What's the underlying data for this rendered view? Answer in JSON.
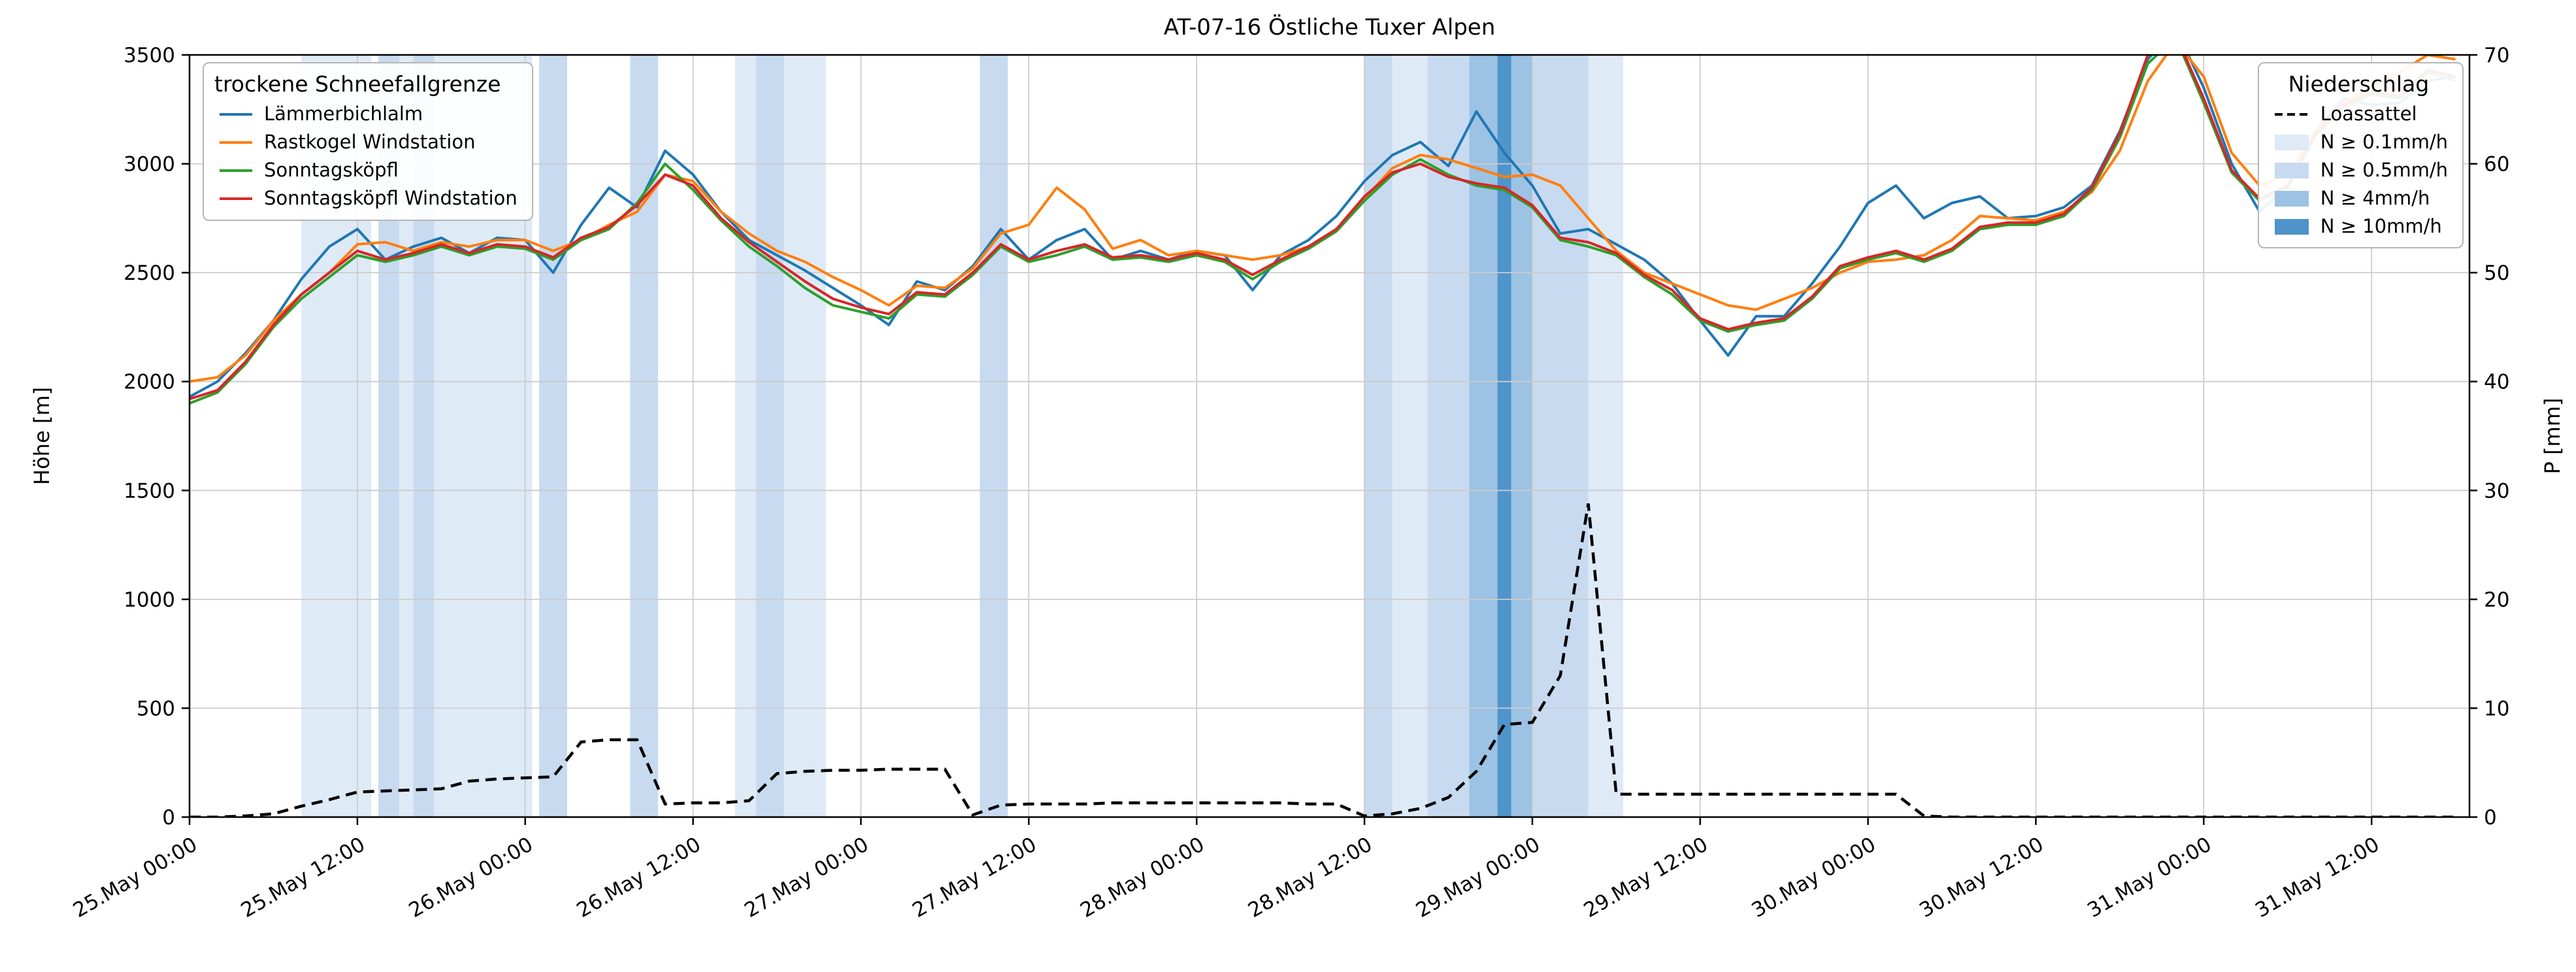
{
  "chart_data": {
    "type": "line",
    "title": "AT-07-16 Östliche Tuxer Alpen",
    "ylabel_left": "Höhe [m]",
    "ylabel_right": "P [mm]",
    "ylim_left": [
      0,
      3500
    ],
    "yticks_left": [
      0,
      500,
      1000,
      1500,
      2000,
      2500,
      3000,
      3500
    ],
    "ylim_right": [
      0,
      70
    ],
    "yticks_right": [
      0,
      10,
      20,
      30,
      40,
      50,
      60,
      70
    ],
    "x_domain_hours": [
      0,
      163
    ],
    "time_step_hours": 2,
    "grid": true,
    "x_ticks": [
      {
        "hour": 0,
        "label": "25.May 00:00"
      },
      {
        "hour": 12,
        "label": "25.May 12:00"
      },
      {
        "hour": 24,
        "label": "26.May 00:00"
      },
      {
        "hour": 36,
        "label": "26.May 12:00"
      },
      {
        "hour": 48,
        "label": "27.May 00:00"
      },
      {
        "hour": 60,
        "label": "27.May 12:00"
      },
      {
        "hour": 72,
        "label": "28.May 00:00"
      },
      {
        "hour": 84,
        "label": "28.May 12:00"
      },
      {
        "hour": 96,
        "label": "29.May 00:00"
      },
      {
        "hour": 108,
        "label": "29.May 12:00"
      },
      {
        "hour": 120,
        "label": "30.May 00:00"
      },
      {
        "hour": 132,
        "label": "30.May 12:00"
      },
      {
        "hour": 144,
        "label": "31.May 00:00"
      },
      {
        "hour": 156,
        "label": "31.May 12:00"
      }
    ],
    "legend_left": {
      "title": "trockene Schneefallgrenze"
    },
    "legend_right": {
      "title": "Niederschlag",
      "line_entry": "Loassattel",
      "band_entries": [
        {
          "label": "N ≥ 0.1mm/h",
          "level": "0.1"
        },
        {
          "label": "N ≥ 0.5mm/h",
          "level": "0.5"
        },
        {
          "label": "N ≥ 4mm/h",
          "level": "4"
        },
        {
          "label": "N ≥ 10mm/h",
          "level": "10"
        }
      ]
    },
    "band_colors": {
      "0.1": "#dfeaf7",
      "0.5": "#c7daf0",
      "4": "#9cc2e4",
      "10": "#4f94ca"
    },
    "series": [
      {
        "name": "Lämmerbichlalm",
        "color": "#1f77b4",
        "axis": "left",
        "values": [
          1930,
          2000,
          2130,
          2280,
          2470,
          2620,
          2700,
          2560,
          2620,
          2660,
          2590,
          2660,
          2650,
          2500,
          2720,
          2890,
          2800,
          3060,
          2950,
          2780,
          2650,
          2580,
          2510,
          2430,
          2350,
          2260,
          2460,
          2420,
          2530,
          2700,
          2560,
          2650,
          2700,
          2560,
          2600,
          2560,
          2600,
          2580,
          2420,
          2580,
          2650,
          2760,
          2920,
          3040,
          3100,
          2990,
          3240,
          3050,
          2900,
          2680,
          2700,
          2630,
          2560,
          2450,
          2280,
          2120,
          2300,
          2300,
          2450,
          2620,
          2820,
          2900,
          2750,
          2820,
          2850,
          2750,
          2760,
          2800,
          2900,
          3150,
          3480,
          3620,
          3350,
          3000,
          2780,
          2900,
          3150,
          3300,
          3270,
          3280,
          3380,
          3400
        ]
      },
      {
        "name": "Rastkogel Windstation",
        "color": "#ff7f0e",
        "axis": "left",
        "values": [
          2000,
          2020,
          2120,
          2280,
          2400,
          2500,
          2630,
          2640,
          2600,
          2640,
          2620,
          2650,
          2650,
          2600,
          2650,
          2720,
          2780,
          2950,
          2920,
          2780,
          2680,
          2600,
          2550,
          2480,
          2420,
          2350,
          2440,
          2430,
          2520,
          2680,
          2720,
          2890,
          2790,
          2610,
          2650,
          2580,
          2600,
          2580,
          2560,
          2580,
          2620,
          2700,
          2840,
          2980,
          3040,
          3020,
          2980,
          2940,
          2950,
          2900,
          2750,
          2600,
          2500,
          2450,
          2400,
          2350,
          2330,
          2380,
          2430,
          2500,
          2550,
          2560,
          2580,
          2650,
          2760,
          2750,
          2740,
          2780,
          2870,
          3060,
          3380,
          3560,
          3400,
          3050,
          2900,
          2950,
          3150,
          3280,
          3350,
          3420,
          3500,
          3480
        ]
      },
      {
        "name": "Sonntagsköpfl",
        "color": "#2ca02c",
        "axis": "left",
        "values": [
          1900,
          1950,
          2080,
          2250,
          2380,
          2480,
          2580,
          2550,
          2580,
          2620,
          2580,
          2620,
          2610,
          2560,
          2650,
          2700,
          2820,
          3000,
          2880,
          2740,
          2620,
          2530,
          2430,
          2350,
          2320,
          2290,
          2400,
          2390,
          2490,
          2620,
          2550,
          2580,
          2620,
          2560,
          2570,
          2550,
          2580,
          2550,
          2470,
          2550,
          2610,
          2690,
          2830,
          2950,
          3020,
          2950,
          2900,
          2880,
          2800,
          2650,
          2620,
          2580,
          2480,
          2400,
          2280,
          2230,
          2260,
          2280,
          2380,
          2520,
          2560,
          2590,
          2550,
          2600,
          2700,
          2720,
          2720,
          2760,
          2880,
          3120,
          3460,
          3580,
          3280,
          2960,
          2830,
          2890,
          3130,
          3260,
          3320,
          3300,
          3420,
          3380
        ]
      },
      {
        "name": "Sonntagsköpfl Windstation",
        "color": "#d62728",
        "axis": "left",
        "values": [
          1920,
          1960,
          2090,
          2260,
          2400,
          2500,
          2600,
          2560,
          2590,
          2630,
          2590,
          2630,
          2620,
          2570,
          2660,
          2710,
          2810,
          2950,
          2900,
          2750,
          2640,
          2550,
          2460,
          2380,
          2340,
          2310,
          2410,
          2400,
          2500,
          2630,
          2560,
          2600,
          2630,
          2570,
          2580,
          2560,
          2590,
          2560,
          2490,
          2560,
          2620,
          2700,
          2850,
          2960,
          3000,
          2940,
          2910,
          2890,
          2810,
          2660,
          2640,
          2590,
          2490,
          2420,
          2290,
          2240,
          2270,
          2290,
          2390,
          2530,
          2570,
          2600,
          2560,
          2610,
          2710,
          2730,
          2730,
          2770,
          2890,
          3140,
          3500,
          3590,
          3300,
          2970,
          2840,
          2900,
          3140,
          3270,
          3330,
          3310,
          3430,
          3400
        ]
      }
    ],
    "precipitation_series": {
      "name": "Loassattel",
      "color": "#000000",
      "style": "dashed",
      "axis": "right",
      "values": [
        0,
        0,
        0.1,
        0.3,
        1.0,
        1.6,
        2.3,
        2.4,
        2.5,
        2.6,
        3.3,
        3.5,
        3.6,
        3.7,
        6.9,
        7.1,
        7.1,
        1.2,
        1.3,
        1.3,
        1.5,
        4.0,
        4.2,
        4.3,
        4.3,
        4.4,
        4.4,
        4.4,
        0.2,
        1.1,
        1.2,
        1.2,
        1.2,
        1.3,
        1.3,
        1.3,
        1.3,
        1.3,
        1.3,
        1.3,
        1.2,
        1.2,
        0.1,
        0.3,
        0.8,
        1.8,
        4.2,
        8.5,
        8.7,
        13.0,
        28.8,
        2.1,
        2.1,
        2.1,
        2.1,
        2.1,
        2.1,
        2.1,
        2.1,
        2.1,
        2.1,
        2.1,
        0.1,
        0,
        0,
        0,
        0,
        0,
        0,
        0,
        0,
        0,
        0,
        0,
        0,
        0,
        0,
        0,
        0,
        0,
        0,
        0
      ]
    },
    "precip_bands": [
      {
        "start_hour": 8,
        "end_hour": 13,
        "level": "0.1"
      },
      {
        "start_hour": 13.5,
        "end_hour": 15,
        "level": "0.5"
      },
      {
        "start_hour": 15,
        "end_hour": 16,
        "level": "0.1"
      },
      {
        "start_hour": 16,
        "end_hour": 17.5,
        "level": "0.5"
      },
      {
        "start_hour": 17.5,
        "end_hour": 24.5,
        "level": "0.1"
      },
      {
        "start_hour": 25,
        "end_hour": 27,
        "level": "0.5"
      },
      {
        "start_hour": 31.5,
        "end_hour": 33.5,
        "level": "0.5"
      },
      {
        "start_hour": 39,
        "end_hour": 40.5,
        "level": "0.1"
      },
      {
        "start_hour": 40.5,
        "end_hour": 42.5,
        "level": "0.5"
      },
      {
        "start_hour": 42.5,
        "end_hour": 45.5,
        "level": "0.1"
      },
      {
        "start_hour": 56.5,
        "end_hour": 58.5,
        "level": "0.5"
      },
      {
        "start_hour": 84,
        "end_hour": 86,
        "level": "0.5"
      },
      {
        "start_hour": 86,
        "end_hour": 88.5,
        "level": "0.1"
      },
      {
        "start_hour": 88.5,
        "end_hour": 91.5,
        "level": "0.5"
      },
      {
        "start_hour": 91.5,
        "end_hour": 93.5,
        "level": "4"
      },
      {
        "start_hour": 93.5,
        "end_hour": 94.5,
        "level": "10"
      },
      {
        "start_hour": 94.5,
        "end_hour": 96,
        "level": "4"
      },
      {
        "start_hour": 96,
        "end_hour": 100,
        "level": "0.5"
      },
      {
        "start_hour": 100,
        "end_hour": 102.5,
        "level": "0.1"
      }
    ]
  }
}
